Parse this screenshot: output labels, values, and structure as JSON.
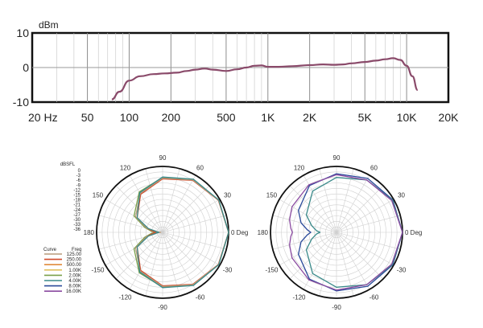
{
  "chart_data": [
    {
      "type": "line",
      "ylabel": "dBm",
      "x_scale": "log",
      "xlim": [
        20,
        20000
      ],
      "ylim": [
        -10,
        10
      ],
      "y_ticks": [
        "10",
        "0",
        "-10"
      ],
      "x_ticks": [
        {
          "label": "20  Hz",
          "value": 20
        },
        {
          "label": "50",
          "value": 50
        },
        {
          "label": "100",
          "value": 100
        },
        {
          "label": "200",
          "value": 200
        },
        {
          "label": "500",
          "value": 500
        },
        {
          "label": "1K",
          "value": 1000
        },
        {
          "label": "2K",
          "value": 2000
        },
        {
          "label": "5K",
          "value": 5000
        },
        {
          "label": "10K",
          "value": 10000
        },
        {
          "label": "20K",
          "value": 20000
        }
      ],
      "grid": true,
      "series_color": "#8a4a6a",
      "x": [
        75,
        85,
        100,
        120,
        150,
        180,
        220,
        260,
        300,
        350,
        400,
        500,
        600,
        700,
        800,
        900,
        1000,
        1200,
        1500,
        2000,
        2500,
        3000,
        3500,
        4000,
        5000,
        6000,
        7000,
        8000,
        9000,
        10000,
        11000,
        12000
      ],
      "y": [
        -9.2,
        -7.0,
        -3.8,
        -2.5,
        -1.9,
        -1.7,
        -1.5,
        -1.0,
        -0.6,
        -0.3,
        -0.6,
        -1.0,
        -0.5,
        0.0,
        0.5,
        0.6,
        0.2,
        0.2,
        0.4,
        0.7,
        0.9,
        0.8,
        0.9,
        1.2,
        1.6,
        2.0,
        2.4,
        2.7,
        2.2,
        0.5,
        -2.5,
        -6.5
      ]
    },
    {
      "type": "polar",
      "db_label": "dBSFL",
      "db_ticks": [
        "0",
        "-3",
        "-6",
        "-9",
        "-12",
        "-15",
        "-18",
        "-21",
        "-24",
        "-27",
        "-30",
        "-33",
        "-36"
      ],
      "angle_labels": [
        {
          "label": "90",
          "deg": 90
        },
        {
          "label": "60",
          "deg": 60
        },
        {
          "label": "30",
          "deg": 30
        },
        {
          "label": "0 Deg",
          "deg": 0
        },
        {
          "label": "-30",
          "deg": -30
        },
        {
          "label": "-60",
          "deg": -60
        },
        {
          "label": "-90",
          "deg": -90
        },
        {
          "label": "-120",
          "deg": -120
        },
        {
          "label": "-150",
          "deg": -150
        },
        {
          "label": "180",
          "deg": 180
        },
        {
          "label": "150",
          "deg": 150
        },
        {
          "label": "120",
          "deg": 120
        }
      ],
      "legend": {
        "col_curve": "Curve",
        "col_freq": "Freq",
        "entries": [
          {
            "freq": "125.00",
            "color": "#b89a7a"
          },
          {
            "freq": "250.00",
            "color": "#d04a2a"
          },
          {
            "freq": "500.00",
            "color": "#e08a3a"
          },
          {
            "freq": "1.00K",
            "color": "#e0c060"
          },
          {
            "freq": "2.00K",
            "color": "#7aa04a"
          },
          {
            "freq": "4.00K",
            "color": "#3a8a8a"
          },
          {
            "freq": "8.00K",
            "color": "#2a4a9a"
          },
          {
            "freq": "16.00K",
            "color": "#8a4aa0"
          }
        ]
      },
      "series": [
        {
          "color": "#7aa04a",
          "angles": [
            0,
            30,
            60,
            90,
            120,
            150,
            165,
            175,
            180
          ],
          "db": [
            0,
            -0.7,
            -2.8,
            -6.0,
            -10.5,
            -18,
            -26,
            -30,
            -32
          ]
        },
        {
          "color": "#d04a2a",
          "angles": [
            0,
            30,
            60,
            90,
            120,
            150,
            165,
            175,
            180
          ],
          "db": [
            0,
            -0.9,
            -3.2,
            -6.8,
            -12,
            -20,
            -27,
            -31,
            -33
          ]
        },
        {
          "color": "#b89a7a",
          "angles": [
            0,
            30,
            60,
            90,
            120,
            150,
            165,
            175,
            180
          ],
          "db": [
            0,
            -0.8,
            -3.0,
            -6.4,
            -11.5,
            -19,
            -27,
            -33,
            -35
          ]
        },
        {
          "color": "#3a8a8a",
          "angles": [
            0,
            30,
            60,
            90,
            120,
            150,
            165,
            175,
            180
          ],
          "db": [
            0,
            -0.6,
            -2.5,
            -5.8,
            -11,
            -20,
            -28,
            -33,
            -34
          ]
        }
      ]
    },
    {
      "type": "polar",
      "angle_labels": [
        {
          "label": "90",
          "deg": 90
        },
        {
          "label": "60",
          "deg": 60
        },
        {
          "label": "30",
          "deg": 30
        },
        {
          "label": "0 Deg",
          "deg": 0
        },
        {
          "label": "-30",
          "deg": -30
        },
        {
          "label": "-60",
          "deg": -60
        },
        {
          "label": "-90",
          "deg": -90
        },
        {
          "label": "-120",
          "deg": -120
        },
        {
          "label": "-150",
          "deg": -150
        },
        {
          "label": "180",
          "deg": 180
        },
        {
          "label": "150",
          "deg": 150
        },
        {
          "label": "120",
          "deg": 120
        }
      ],
      "series": [
        {
          "color": "#2a4a9a",
          "angles": [
            0,
            30,
            60,
            90,
            120,
            150,
            165,
            175,
            180
          ],
          "db": [
            0,
            -0.5,
            -2.0,
            -4.0,
            -6.5,
            -12,
            -16,
            -20,
            -22
          ]
        },
        {
          "color": "#3a8a8a",
          "angles": [
            0,
            30,
            60,
            90,
            120,
            150,
            165,
            175,
            180
          ],
          "db": [
            0,
            -0.8,
            -3.0,
            -6.0,
            -10,
            -17,
            -22,
            -25,
            -27
          ]
        },
        {
          "color": "#8a4aa0",
          "angles": [
            0,
            30,
            60,
            90,
            120,
            150,
            165,
            175,
            180
          ],
          "db": [
            0,
            -1.2,
            -3.0,
            -4.5,
            -6.0,
            -8.0,
            -9.5,
            -11,
            -12
          ]
        }
      ]
    }
  ]
}
